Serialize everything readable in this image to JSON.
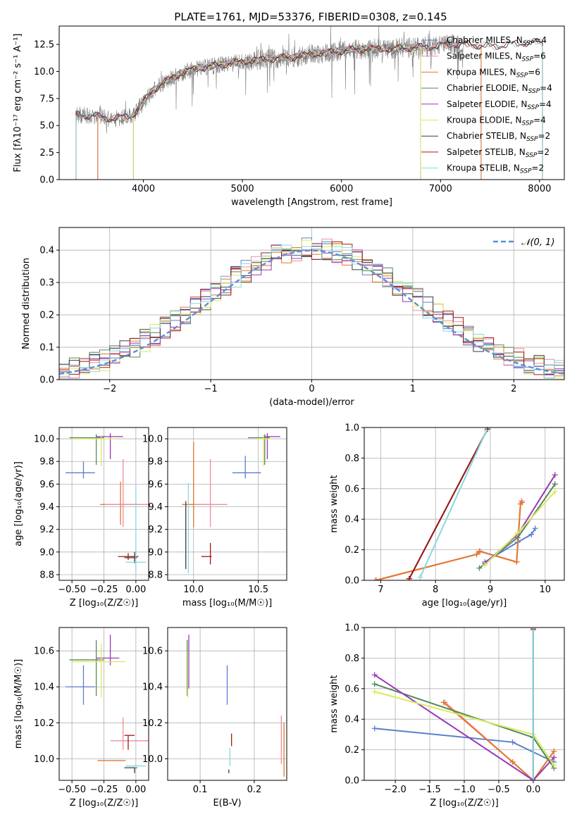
{
  "figure_title": "PLATE=1761, MJD=53376, FIBERID=0308, z=0.145",
  "chart_data": [
    {
      "type": "line",
      "xlabel": "wavelength [Angstrom, rest frame]",
      "ylabel": "Flux [fλ10⁻¹⁷ erg cm⁻² s⁻¹ A⁻¹]",
      "xlim": [
        3150,
        8250
      ],
      "ylim": [
        0,
        14.2
      ],
      "xticks": [
        4000,
        5000,
        6000,
        7000,
        8000
      ],
      "yticks": [
        0,
        2.5,
        5,
        7.5,
        10,
        12.5
      ],
      "ytick_labels": [
        "0.0",
        "2.5",
        "5.0",
        "7.5",
        "10.0",
        "12.5"
      ],
      "legend_placement": "upper-right",
      "series": [
        {
          "name": "Chabrier MILES, N_SSP=4",
          "color": "#5b7fce",
          "range": [
            3540,
            7410
          ]
        },
        {
          "name": "Salpeter MILES, N_SSP=6",
          "color": "#f08ca0",
          "range": [
            3540,
            7410
          ]
        },
        {
          "name": "Kroupa MILES, N_SSP=6",
          "color": "#e0782d",
          "range": [
            3540,
            7410
          ]
        },
        {
          "name": "Chabrier ELODIE, N_SSP=4",
          "color": "#55885a",
          "range": [
            3900,
            6800
          ]
        },
        {
          "name": "Salpeter ELODIE, N_SSP=4",
          "color": "#9a38b8",
          "range": [
            3900,
            6800
          ]
        },
        {
          "name": "Kroupa ELODIE, N_SSP=4",
          "color": "#d9ea5e",
          "range": [
            3900,
            6800
          ]
        },
        {
          "name": "Chabrier STELIB, N_SSP=2",
          "color": "#3c3c3c",
          "range": [
            3320,
            8030
          ]
        },
        {
          "name": "Salpeter STELIB, N_SSP=2",
          "color": "#a01818",
          "range": [
            3320,
            8030
          ]
        },
        {
          "name": "Kroupa STELIB, N_SSP=2",
          "color": "#88d8de",
          "range": [
            3320,
            8030
          ]
        }
      ],
      "data_color": "#808080",
      "model_shape": {
        "x": [
          3320,
          3500,
          3700,
          3900,
          4100,
          4300,
          4500,
          4700,
          4900,
          5100,
          5300,
          5500,
          5700,
          5900,
          6100,
          6300,
          6500,
          6700,
          6900,
          7100,
          7300,
          7500,
          7700,
          7900,
          8030
        ],
        "y": [
          6.0,
          5.9,
          5.6,
          6.0,
          8.3,
          9.5,
          10.2,
          10.5,
          10.8,
          11.0,
          11.2,
          11.3,
          11.6,
          11.8,
          12.0,
          12.1,
          12.1,
          12.2,
          12.3,
          12.5,
          12.5,
          12.3,
          12.5,
          12.7,
          12.7
        ]
      }
    },
    {
      "type": "histogram",
      "xlabel": "(data-model)/error",
      "ylabel": "Normed distribution",
      "xlim": [
        -2.5,
        2.5
      ],
      "ylim": [
        0,
        0.47
      ],
      "xticks": [
        -2,
        -1,
        0,
        1,
        2
      ],
      "yticks": [
        0,
        0.1,
        0.2,
        0.3,
        0.4
      ],
      "ytick_labels": [
        "0.0",
        "0.1",
        "0.2",
        "0.3",
        "0.4"
      ],
      "grid": true,
      "legend_placement": "upper-right",
      "reference_curve": {
        "name": "𝒩(0, 1)",
        "color": "#5b8fd6",
        "style": "dashed"
      },
      "bin_width": 0.1,
      "series_colors": [
        "#5b7fce",
        "#f08ca0",
        "#e0782d",
        "#55885a",
        "#9a38b8",
        "#d9ea5e",
        "#3c3c3c",
        "#a01818",
        "#88d8de"
      ]
    },
    {
      "type": "errorbar",
      "xlabel": "Z [log₁₀(Z/Z☉)]",
      "ylabel": "age  [log₁₀(age/yr)]",
      "xlim": [
        -0.6,
        0.1
      ],
      "ylim": [
        8.75,
        10.1
      ],
      "xticks": [
        -0.5,
        -0.25,
        0.0
      ],
      "xtick_labels": [
        "−0.50",
        "−0.25",
        "0.00"
      ],
      "yticks": [
        8.8,
        9.0,
        9.2,
        9.4,
        9.6,
        9.8,
        10.0
      ],
      "ytick_labels": [
        "8.8",
        "9.0",
        "9.2",
        "9.4",
        "9.6",
        "9.8",
        "10.0"
      ],
      "points": [
        {
          "color": "#5b7fce",
          "x": -0.41,
          "xerr": [
            0.14,
            0.09
          ],
          "y": 9.7,
          "yerr": [
            0.05,
            0.1
          ]
        },
        {
          "color": "#e0782d",
          "x": -0.12,
          "xerr": [
            0.16,
            0.15
          ],
          "y": 9.42,
          "yerr": [
            0.18,
            0.2
          ]
        },
        {
          "color": "#f08ca0",
          "x": -0.1,
          "xerr": [
            0.14,
            0.2
          ],
          "y": 9.42,
          "yerr": [
            0.2,
            0.4
          ]
        },
        {
          "color": "#55885a",
          "x": -0.31,
          "xerr": [
            0.21,
            0.06
          ],
          "y": 10.01,
          "yerr": [
            0.24,
            0.03
          ]
        },
        {
          "color": "#9a38b8",
          "x": -0.2,
          "xerr": [
            0.11,
            0.1
          ],
          "y": 10.02,
          "yerr": [
            0.2,
            0.03
          ]
        },
        {
          "color": "#d9ea5e",
          "x": -0.27,
          "xerr": [
            0.23,
            0.12
          ],
          "y": 10.0,
          "yerr": [
            0.24,
            0.03
          ]
        },
        {
          "color": "#3c3c3c",
          "x": -0.01,
          "xerr": [
            0.08,
            0.02
          ],
          "y": 8.95,
          "yerr": [
            0.05,
            0.05
          ]
        },
        {
          "color": "#a01818",
          "x": -0.06,
          "xerr": [
            0.08,
            0.08
          ],
          "y": 8.96,
          "yerr": [
            0.03,
            0.03
          ]
        },
        {
          "color": "#88d8de",
          "x": 0.0,
          "xerr": [
            0.08,
            0.08
          ],
          "y": 8.91,
          "yerr": [
            0.1,
            0.68
          ]
        }
      ]
    },
    {
      "type": "errorbar",
      "xlabel": "mass [log₁₀(M/M☉)]",
      "ylabel": "",
      "xlim": [
        9.8,
        10.72
      ],
      "ylim": [
        8.75,
        10.1
      ],
      "xticks": [
        10.0,
        10.5
      ],
      "xtick_labels": [
        "10.0",
        "10.5"
      ],
      "yticks": [
        8.8,
        9.0,
        9.2,
        9.4,
        9.6,
        9.8,
        10.0
      ],
      "ytick_labels": [
        "8.8",
        "9.0",
        "9.2",
        "9.4",
        "9.6",
        "9.8",
        "10.0"
      ],
      "points": [
        {
          "color": "#5b7fce",
          "x": 10.4,
          "xerr": [
            0.1,
            0.12
          ],
          "y": 9.7,
          "yerr": [
            0.05,
            0.15
          ]
        },
        {
          "color": "#e0782d",
          "x": 10.0,
          "xerr": [
            0.09,
            0.1
          ],
          "y": 9.42,
          "yerr": [
            0.2,
            0.55
          ]
        },
        {
          "color": "#f08ca0",
          "x": 10.13,
          "xerr": [
            0.13,
            0.13
          ],
          "y": 9.42,
          "yerr": [
            0.2,
            0.4
          ]
        },
        {
          "color": "#55885a",
          "x": 10.55,
          "xerr": [
            0.13,
            0.04
          ],
          "y": 10.01,
          "yerr": [
            0.24,
            0.03
          ]
        },
        {
          "color": "#9a38b8",
          "x": 10.57,
          "xerr": [
            0.03,
            0.1
          ],
          "y": 10.02,
          "yerr": [
            0.2,
            0.03
          ]
        },
        {
          "color": "#d9ea5e",
          "x": 10.54,
          "xerr": [
            0.05,
            0.06
          ],
          "y": 10.0,
          "yerr": [
            0.24,
            0.03
          ]
        },
        {
          "color": "#3c3c3c",
          "x": 9.94,
          "xerr": [
            0.0,
            0.0
          ],
          "y": 8.95,
          "yerr": [
            0.1,
            0.5
          ]
        },
        {
          "color": "#a01818",
          "x": 10.13,
          "xerr": [
            0.07,
            0.01
          ],
          "y": 8.96,
          "yerr": [
            0.07,
            0.12
          ]
        },
        {
          "color": "#88d8de",
          "x": 9.96,
          "xerr": [
            0.0,
            0.0
          ],
          "y": 8.91,
          "yerr": [
            0.1,
            0.7
          ]
        }
      ]
    },
    {
      "type": "line",
      "xlabel": "age  [log₁₀(age/yr)]",
      "ylabel": "mass weight",
      "xlim": [
        6.7,
        10.35
      ],
      "ylim": [
        0,
        1
      ],
      "xticks": [
        7,
        8,
        9,
        10
      ],
      "yticks": [
        0,
        0.2,
        0.4,
        0.6,
        0.8,
        1.0
      ],
      "ytick_labels": [
        "0.0",
        "0.2",
        "0.4",
        "0.6",
        "0.8",
        "1.0"
      ],
      "grid": true,
      "series": [
        {
          "color": "#5b7fce",
          "x": [
            8.9,
            9.5,
            9.75,
            9.82
          ],
          "y": [
            0.12,
            0.25,
            0.3,
            0.34
          ]
        },
        {
          "color": "#f08ca0",
          "x": [
            6.9,
            8.75,
            8.82,
            9.48,
            9.55,
            9.57
          ],
          "y": [
            0.0,
            0.17,
            0.19,
            0.12,
            0.5,
            0.52
          ]
        },
        {
          "color": "#e0782d",
          "x": [
            6.92,
            8.75,
            8.8,
            9.48,
            9.55,
            9.58
          ],
          "y": [
            0.0,
            0.17,
            0.19,
            0.12,
            0.5,
            0.51
          ]
        },
        {
          "color": "#55885a",
          "x": [
            8.8,
            9.5,
            10.18
          ],
          "y": [
            0.08,
            0.28,
            0.63
          ]
        },
        {
          "color": "#9a38b8",
          "x": [
            8.9,
            9.5,
            10.18
          ],
          "y": [
            0.11,
            0.3,
            0.69
          ]
        },
        {
          "color": "#d9ea5e",
          "x": [
            8.9,
            9.5,
            10.18
          ],
          "y": [
            0.1,
            0.31,
            0.58
          ]
        },
        {
          "color": "#3c3c3c",
          "x": [
            7.52,
            8.95
          ],
          "y": [
            0.01,
            0.99
          ]
        },
        {
          "color": "#a01818",
          "x": [
            7.52,
            8.95
          ],
          "y": [
            0.01,
            0.99
          ]
        },
        {
          "color": "#88d8de",
          "x": [
            7.72,
            8.93
          ],
          "y": [
            0.02,
            0.98
          ]
        }
      ]
    },
    {
      "type": "errorbar",
      "xlabel": "Z [log₁₀(Z/Z☉)]",
      "ylabel": "mass [log₁₀(M/M☉)]",
      "xlim": [
        -0.6,
        0.1
      ],
      "ylim": [
        9.88,
        10.73
      ],
      "xticks": [
        -0.5,
        -0.25,
        0.0
      ],
      "xtick_labels": [
        "−0.50",
        "−0.25",
        "0.00"
      ],
      "yticks": [
        10.0,
        10.2,
        10.4,
        10.6
      ],
      "ytick_labels": [
        "10.0",
        "10.2",
        "10.4",
        "10.6"
      ],
      "points": [
        {
          "color": "#5b7fce",
          "x": -0.41,
          "xerr": [
            0.14,
            0.09
          ],
          "y": 10.4,
          "yerr": [
            0.1,
            0.12
          ]
        },
        {
          "color": "#e0782d",
          "x": -0.2,
          "xerr": [
            0.1,
            0.12
          ],
          "y": 9.99,
          "yerr": [
            0.0,
            0.0
          ]
        },
        {
          "color": "#f08ca0",
          "x": -0.1,
          "xerr": [
            0.1,
            0.2
          ],
          "y": 10.1,
          "yerr": [
            0.05,
            0.13
          ]
        },
        {
          "color": "#55885a",
          "x": -0.31,
          "xerr": [
            0.21,
            0.06
          ],
          "y": 10.55,
          "yerr": [
            0.2,
            0.11
          ]
        },
        {
          "color": "#9a38b8",
          "x": -0.2,
          "xerr": [
            0.11,
            0.07
          ],
          "y": 10.56,
          "yerr": [
            0.04,
            0.13
          ]
        },
        {
          "color": "#d9ea5e",
          "x": -0.27,
          "xerr": [
            0.23,
            0.19
          ],
          "y": 10.54,
          "yerr": [
            0.2,
            0.1
          ]
        },
        {
          "color": "#3c3c3c",
          "x": -0.01,
          "xerr": [
            0.08,
            0.02
          ],
          "y": 9.95,
          "yerr": [
            0.03,
            0.0
          ]
        },
        {
          "color": "#a01818",
          "x": -0.06,
          "xerr": [
            0.03,
            0.05
          ],
          "y": 10.13,
          "yerr": [
            0.08,
            0.0
          ]
        },
        {
          "color": "#88d8de",
          "x": 0.0,
          "xerr": [
            0.08,
            0.08
          ],
          "y": 9.96,
          "yerr": [
            0.02,
            0.01
          ]
        }
      ]
    },
    {
      "type": "errorbar",
      "xlabel": "E(B-V)",
      "ylabel": "",
      "xlim": [
        0.04,
        0.26
      ],
      "ylim": [
        9.88,
        10.73
      ],
      "xticks": [
        0.1,
        0.2
      ],
      "xtick_labels": [
        "0.1",
        "0.2"
      ],
      "yticks": [
        10.0,
        10.2,
        10.4,
        10.6
      ],
      "ytick_labels": [
        "10.0",
        "10.2",
        "10.4",
        "10.6"
      ],
      "points": [
        {
          "color": "#5b7fce",
          "x": 0.15,
          "xerr": [
            0,
            0
          ],
          "y": 10.4,
          "yerr": [
            0.1,
            0.12
          ]
        },
        {
          "color": "#e0782d",
          "x": 0.255,
          "xerr": [
            0,
            0
          ],
          "y": 10.05,
          "yerr": [
            0.15,
            0.15
          ]
        },
        {
          "color": "#f08ca0",
          "x": 0.25,
          "xerr": [
            0,
            0
          ],
          "y": 10.1,
          "yerr": [
            0.13,
            0.14
          ]
        },
        {
          "color": "#55885a",
          "x": 0.076,
          "xerr": [
            0,
            0
          ],
          "y": 10.55,
          "yerr": [
            0.2,
            0.11
          ]
        },
        {
          "color": "#9a38b8",
          "x": 0.079,
          "xerr": [
            0,
            0
          ],
          "y": 10.56,
          "yerr": [
            0.17,
            0.13
          ]
        },
        {
          "color": "#d9ea5e",
          "x": 0.077,
          "xerr": [
            0,
            0
          ],
          "y": 10.5,
          "yerr": [
            0.16,
            0.1
          ]
        },
        {
          "color": "#3c3c3c",
          "x": 0.153,
          "xerr": [
            0,
            0
          ],
          "y": 9.94,
          "yerr": [
            0.02,
            0.0
          ]
        },
        {
          "color": "#a01818",
          "x": 0.158,
          "xerr": [
            0,
            0
          ],
          "y": 10.11,
          "yerr": [
            0.04,
            0.03
          ]
        },
        {
          "color": "#88d8de",
          "x": 0.155,
          "xerr": [
            0,
            0
          ],
          "y": 10.0,
          "yerr": [
            0.04,
            0.06
          ]
        }
      ]
    },
    {
      "type": "line",
      "xlabel": "Z [log₁₀(Z/Z☉)]",
      "ylabel": "mass weight",
      "xlim": [
        -2.45,
        0.45
      ],
      "ylim": [
        0,
        1
      ],
      "xticks": [
        -2.0,
        -1.5,
        -1.0,
        -0.5,
        0.0
      ],
      "xtick_labels": [
        "−2.0",
        "−1.5",
        "−1.0",
        "−0.5",
        "0.0"
      ],
      "yticks": [
        0,
        0.2,
        0.4,
        0.6,
        0.8,
        1.0
      ],
      "ytick_labels": [
        "0.0",
        "0.2",
        "0.4",
        "0.6",
        "0.8",
        "1.0"
      ],
      "grid": true,
      "series": [
        {
          "color": "#5b7fce",
          "x": [
            -2.3,
            -0.3,
            0.3
          ],
          "y": [
            0.34,
            0.25,
            0.12
          ]
        },
        {
          "color": "#f08ca0",
          "x": [
            -1.28,
            -0.3,
            0.0,
            0.3
          ],
          "y": [
            0.51,
            0.12,
            0.0,
            0.19
          ]
        },
        {
          "color": "#e0782d",
          "x": [
            -1.3,
            -0.3,
            0.0,
            0.3
          ],
          "y": [
            0.51,
            0.12,
            0.0,
            0.19
          ]
        },
        {
          "color": "#55885a",
          "x": [
            -2.3,
            0.0,
            0.3
          ],
          "y": [
            0.63,
            0.28,
            0.08
          ]
        },
        {
          "color": "#9a38b8",
          "x": [
            -2.3,
            0.0,
            0.3
          ],
          "y": [
            0.69,
            0.0,
            0.15
          ]
        },
        {
          "color": "#d9ea5e",
          "x": [
            -2.3,
            0.0,
            0.3
          ],
          "y": [
            0.58,
            0.3,
            0.1
          ]
        },
        {
          "color": "#3c3c3c",
          "x": [
            0.0,
            0.0
          ],
          "y": [
            0.0,
            0.99
          ]
        },
        {
          "color": "#a01818",
          "x": [
            0.0,
            0.0
          ],
          "y": [
            0.0,
            0.99
          ]
        },
        {
          "color": "#88d8de",
          "x": [
            0.0,
            0.0
          ],
          "y": [
            0.0,
            0.98
          ]
        }
      ]
    }
  ]
}
